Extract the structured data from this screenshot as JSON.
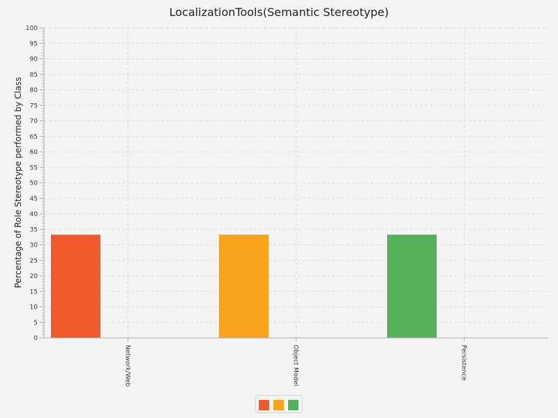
{
  "chart_data": {
    "type": "bar",
    "title": "LocalizationTools(Semantic Stereotype)",
    "ylabel": "Percentage of Role Stereotype performed by Class",
    "xlabel": "",
    "ylim": [
      0,
      100
    ],
    "ytick_step": 5,
    "grid": true,
    "legend_position": "bottom-center",
    "categories": [
      "Network/Web",
      "Object Model",
      "Persistence"
    ],
    "series": [
      {
        "values": [
          33.3,
          0,
          0
        ],
        "color": "#f05a2c"
      },
      {
        "values": [
          0,
          33.3,
          0
        ],
        "color": "#f8a21e"
      },
      {
        "values": [
          0,
          0,
          33.3
        ],
        "color": "#55b15a"
      }
    ]
  }
}
